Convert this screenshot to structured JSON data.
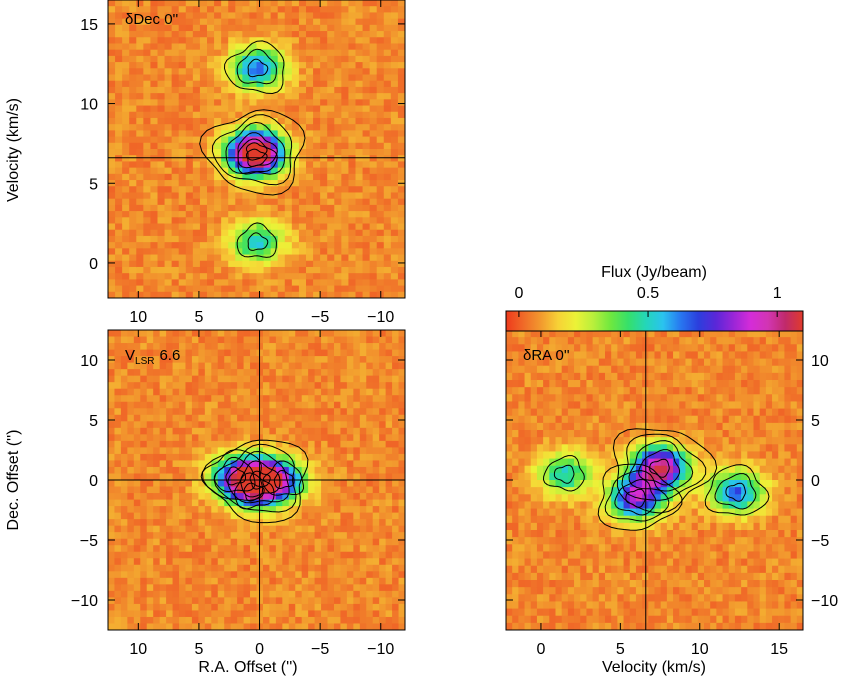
{
  "colors": {
    "background_field": "#f07a26",
    "colormap": [
      "#ee3a1c",
      "#f06a28",
      "#f29a2e",
      "#f7d236",
      "#ecf237",
      "#b8ef3c",
      "#6ee83f",
      "#35e06b",
      "#24d6b9",
      "#2ac3ef",
      "#2877f0",
      "#2b3fdd",
      "#5a27d8",
      "#9925d7",
      "#d52cd8",
      "#d235b3",
      "#c02a6a",
      "#e03b2b"
    ]
  },
  "colorbar": {
    "title": "Flux (Jy/beam)",
    "ticks": [
      "0",
      "0.5",
      "1"
    ],
    "tick_values": [
      0,
      0.5,
      1
    ],
    "range": [
      -0.05,
      1.1
    ]
  },
  "chart_data": [
    {
      "type": "heatmap",
      "panel": "velocity-ra",
      "annotation": "δDec 0''",
      "xlabel": "",
      "ylabel": "Velocity (km/s)",
      "xlim": [
        12.5,
        -12.0
      ],
      "ylim": [
        -2.2,
        16.5
      ],
      "xticks": [
        10,
        5,
        0,
        -5,
        -10
      ],
      "xtick_labels": [
        "10",
        "5",
        "0",
        "−5",
        "−10"
      ],
      "yticks": [
        0,
        5,
        10,
        15
      ],
      "ytick_labels": [
        "0",
        "5",
        "10",
        "15"
      ],
      "crosshair": {
        "y": 6.6
      },
      "peak_flux_jy_per_beam": 1.0,
      "emission_components": [
        {
          "x": 0.3,
          "y": 7.0,
          "flux": 1.0
        },
        {
          "x": 0.2,
          "y": 12.2,
          "flux": 0.6
        },
        {
          "x": 0.2,
          "y": 1.3,
          "flux": 0.45
        },
        {
          "x": 0.3,
          "y": 6.6,
          "flux": 0.35
        }
      ]
    },
    {
      "type": "heatmap",
      "panel": "dec-ra",
      "annotation_prefix": "V",
      "annotation_sub": "LSR",
      "annotation_value": "6.6",
      "xlabel": "R.A. Offset ('')",
      "ylabel": "Dec. Offset ('')",
      "xlim": [
        12.5,
        -12.0
      ],
      "ylim": [
        -12.5,
        12.5
      ],
      "xticks": [
        10,
        5,
        0,
        -5,
        -10
      ],
      "xtick_labels": [
        "10",
        "5",
        "0",
        "−5",
        "−10"
      ],
      "yticks": [
        -10,
        -5,
        0,
        5,
        10
      ],
      "ytick_labels": [
        "−10",
        "−5",
        "0",
        "5",
        "10"
      ],
      "crosshair": {
        "x": 0,
        "y": 0
      },
      "peak_flux_jy_per_beam": 0.9,
      "emission_components": [
        {
          "x": 0.0,
          "y": 0.0,
          "flux": 0.9
        },
        {
          "x": 2.0,
          "y": 0.3,
          "flux": 0.55
        },
        {
          "x": -2.0,
          "y": 0.0,
          "flux": 0.45
        },
        {
          "x": 0.5,
          "y": -1.0,
          "flux": 0.3
        }
      ]
    },
    {
      "type": "heatmap",
      "panel": "dec-velocity",
      "annotation": "δRA 0''",
      "xlabel": "Velocity (km/s)",
      "ylabel": "",
      "xlim": [
        -2.2,
        16.5
      ],
      "ylim": [
        -12.5,
        12.5
      ],
      "xticks": [
        0,
        5,
        10,
        15
      ],
      "xtick_labels": [
        "0",
        "5",
        "10",
        "15"
      ],
      "yticks": [
        -10,
        -5,
        0,
        5,
        10
      ],
      "ytick_labels": [
        "−10",
        "−5",
        "0",
        "5",
        "10"
      ],
      "crosshair": {
        "x": 6.6
      },
      "peak_flux_jy_per_beam": 1.0,
      "emission_components": [
        {
          "x": 7.5,
          "y": 1.0,
          "flux": 1.0
        },
        {
          "x": 6.0,
          "y": -1.5,
          "flux": 0.8
        },
        {
          "x": 12.3,
          "y": -1.0,
          "flux": 0.6
        },
        {
          "x": 1.5,
          "y": 0.5,
          "flux": 0.45
        }
      ]
    }
  ]
}
